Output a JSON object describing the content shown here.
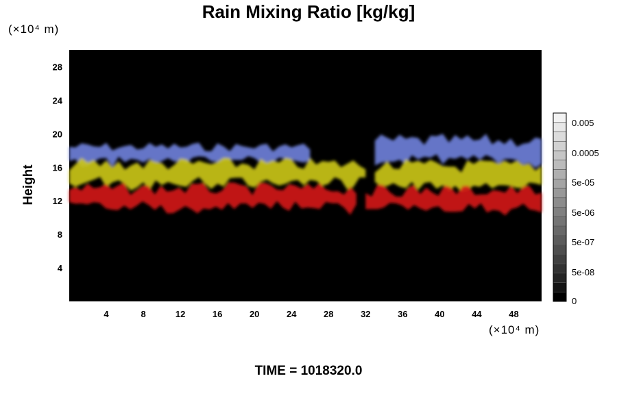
{
  "chart_data": {
    "type": "heatmap",
    "title": "Rain Mixing Ratio [kg/kg]",
    "ylabel": "Height",
    "xunit": "(×10⁴ m)",
    "yunit": "(×10⁴ m)",
    "xlim": [
      0,
      51
    ],
    "ylim": [
      0,
      30
    ],
    "xticks": [
      4,
      8,
      12,
      16,
      20,
      24,
      28,
      32,
      36,
      40,
      44,
      48
    ],
    "yticks": [
      4,
      8,
      12,
      16,
      20,
      24,
      28
    ],
    "background_color": "#000000",
    "layers": [
      {
        "color": "#6e7fd8",
        "bands": [
          {
            "x": [
              0,
              26
            ],
            "y_bottom": 16.5,
            "y_top": 19.0
          },
          {
            "x": [
              33,
              51
            ],
            "y_bottom": 16.3,
            "y_top": 20.0
          }
        ]
      },
      {
        "color": "#c9c418",
        "bands": [
          {
            "x": [
              0,
              32
            ],
            "y_bottom": 13.6,
            "y_top": 17.2
          },
          {
            "x": [
              33,
              51
            ],
            "y_bottom": 13.2,
            "y_top": 17.0
          }
        ]
      },
      {
        "color": "#d01818",
        "bands": [
          {
            "x": [
              0,
              31
            ],
            "y_bottom": 10.8,
            "y_top": 14.2
          },
          {
            "x": [
              32,
              51
            ],
            "y_bottom": 10.6,
            "y_top": 14.0
          }
        ]
      }
    ],
    "colorbar": {
      "labels": [
        "0.005",
        "0.0005",
        "5e-05",
        "5e-06",
        "5e-07",
        "5e-08",
        "0"
      ],
      "levels": 20,
      "color_low": "#000000",
      "color_high": "#f2f2f2"
    }
  },
  "footer": {
    "time_label": "TIME = 1018320.0"
  }
}
